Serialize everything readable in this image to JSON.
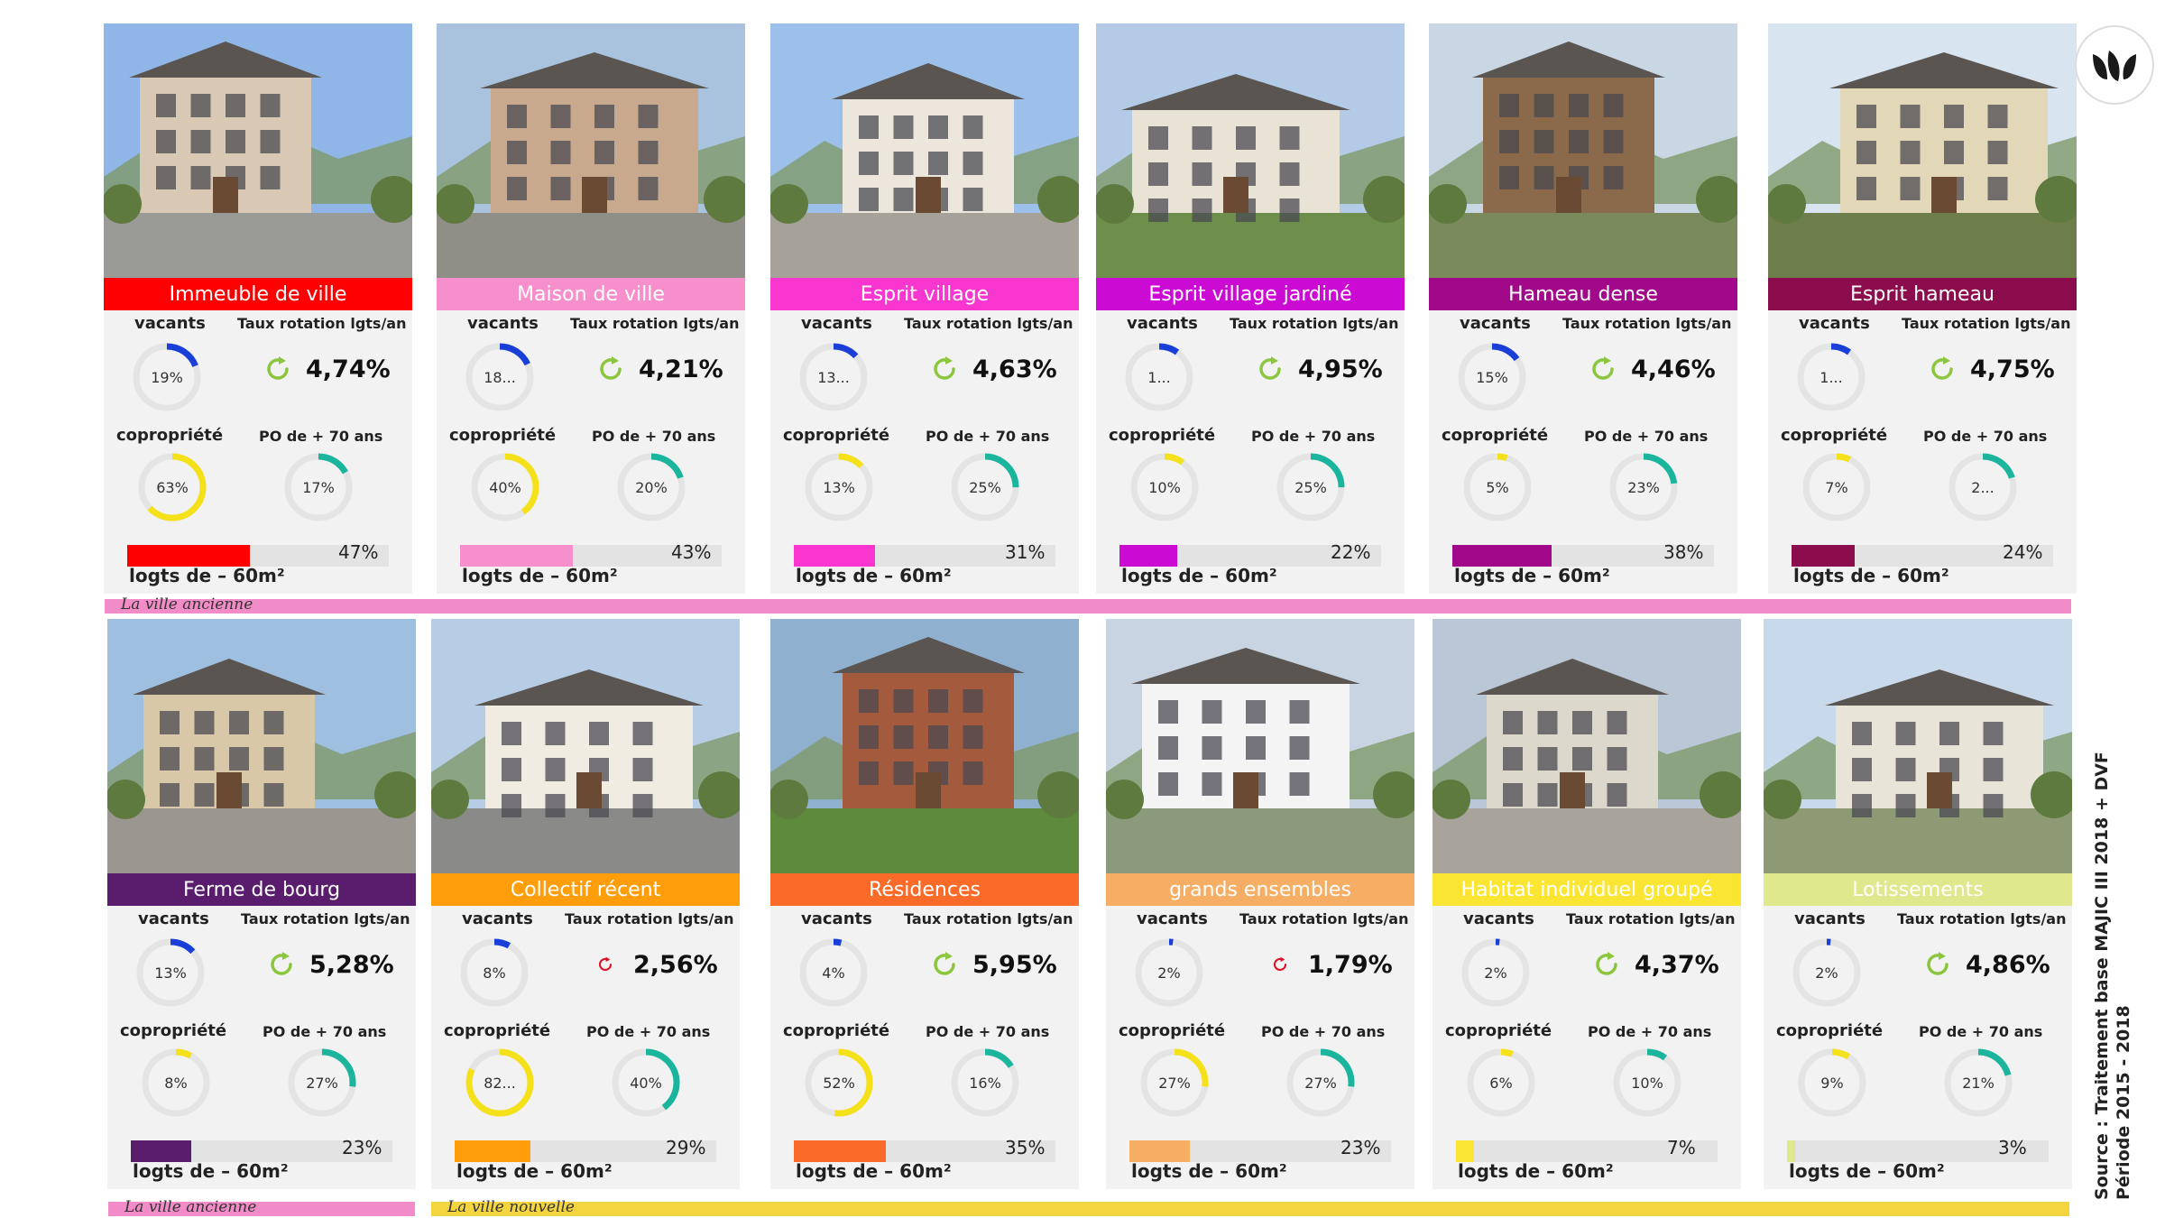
{
  "source": {
    "line1": "Source : Traitement base MAJIC III 2018 + DVF",
    "line2": "Période 2015 - 2018"
  },
  "bands": [
    {
      "label": "La ville ancienne",
      "color": "#f28cc8"
    },
    {
      "label": "La ville ancienne",
      "color": "#f28cc8"
    },
    {
      "label": "La ville nouvelle",
      "color": "#f4d540"
    }
  ],
  "labels": {
    "vacants": "vacants",
    "rotation": "Taux rotation lgts/an",
    "copro": "copropriété",
    "po70": "PO de + 70 ans",
    "logts": "logts de – 60m²"
  },
  "colors": {
    "vacants": "#1a3fd8",
    "copro": "#f5e11a",
    "po70": "#1ab59c",
    "ring": "#e4e4e4",
    "rot_up": "#8cc63f",
    "rot_down": "#e0102a"
  },
  "chart_data": {
    "type": "table",
    "typologies": [
      {
        "name": "Immeuble de ville",
        "color": "#ff0000",
        "vacants": 19,
        "vacants_label": "19%",
        "rotation": "4,74%",
        "rotation_trend": "up",
        "copro": 63,
        "copro_label": "63%",
        "po70": 17,
        "po70_label": "17%",
        "logts": 47,
        "logts_label": "47%"
      },
      {
        "name": "Maison de ville",
        "color": "#f78fcc",
        "vacants": 18,
        "vacants_label": "18...",
        "rotation": "4,21%",
        "rotation_trend": "up",
        "copro": 40,
        "copro_label": "40%",
        "po70": 20,
        "po70_label": "20%",
        "logts": 43,
        "logts_label": "43%"
      },
      {
        "name": "Esprit village",
        "color": "#f936cf",
        "vacants": 13,
        "vacants_label": "13...",
        "rotation": "4,63%",
        "rotation_trend": "up",
        "copro": 13,
        "copro_label": "13%",
        "po70": 25,
        "po70_label": "25%",
        "logts": 31,
        "logts_label": "31%"
      },
      {
        "name": "Esprit village jardiné",
        "color": "#cb0ad4",
        "vacants": 10,
        "vacants_label": "1...",
        "rotation": "4,95%",
        "rotation_trend": "up",
        "copro": 10,
        "copro_label": "10%",
        "po70": 25,
        "po70_label": "25%",
        "logts": 22,
        "logts_label": "22%"
      },
      {
        "name": "Hameau dense",
        "color": "#a1098a",
        "vacants": 15,
        "vacants_label": "15%",
        "rotation": "4,46%",
        "rotation_trend": "up",
        "copro": 5,
        "copro_label": "5%",
        "po70": 23,
        "po70_label": "23%",
        "logts": 38,
        "logts_label": "38%"
      },
      {
        "name": "Esprit hameau",
        "color": "#8b0d4e",
        "vacants": 10,
        "vacants_label": "1...",
        "rotation": "4,75%",
        "rotation_trend": "up",
        "copro": 7,
        "copro_label": "7%",
        "po70": 20,
        "po70_label": "2...",
        "logts": 24,
        "logts_label": "24%"
      },
      {
        "name": "Ferme de bourg",
        "color": "#5a1d6e",
        "vacants": 13,
        "vacants_label": "13%",
        "rotation": "5,28%",
        "rotation_trend": "up",
        "copro": 8,
        "copro_label": "8%",
        "po70": 27,
        "po70_label": "27%",
        "logts": 23,
        "logts_label": "23%"
      },
      {
        "name": "Collectif récent",
        "color": "#ff9e0a",
        "vacants": 8,
        "vacants_label": "8%",
        "rotation": "2,56%",
        "rotation_trend": "down",
        "copro": 82,
        "copro_label": "82...",
        "po70": 40,
        "po70_label": "40%",
        "logts": 29,
        "logts_label": "29%"
      },
      {
        "name": "Résidences",
        "color": "#fa6a28",
        "vacants": 4,
        "vacants_label": "4%",
        "rotation": "5,95%",
        "rotation_trend": "up",
        "copro": 52,
        "copro_label": "52%",
        "po70": 16,
        "po70_label": "16%",
        "logts": 35,
        "logts_label": "35%"
      },
      {
        "name": "grands ensembles",
        "color": "#f6ae64",
        "vacants": 2,
        "vacants_label": "2%",
        "rotation": "1,79%",
        "rotation_trend": "down",
        "copro": 27,
        "copro_label": "27%",
        "po70": 27,
        "po70_label": "27%",
        "logts": 23,
        "logts_label": "23%"
      },
      {
        "name": "Habitat individuel groupé",
        "color": "#fbe533",
        "vacants": 2,
        "vacants_label": "2%",
        "rotation": "4,37%",
        "rotation_trend": "up",
        "copro": 6,
        "copro_label": "6%",
        "po70": 10,
        "po70_label": "10%",
        "logts": 7,
        "logts_label": "7%"
      },
      {
        "name": "Lotissements",
        "color": "#dfe88c",
        "vacants": 2,
        "vacants_label": "2%",
        "rotation": "4,86%",
        "rotation_trend": "up",
        "copro": 9,
        "copro_label": "9%",
        "po70": 21,
        "po70_label": "21%",
        "logts": 3,
        "logts_label": "3%"
      }
    ]
  }
}
